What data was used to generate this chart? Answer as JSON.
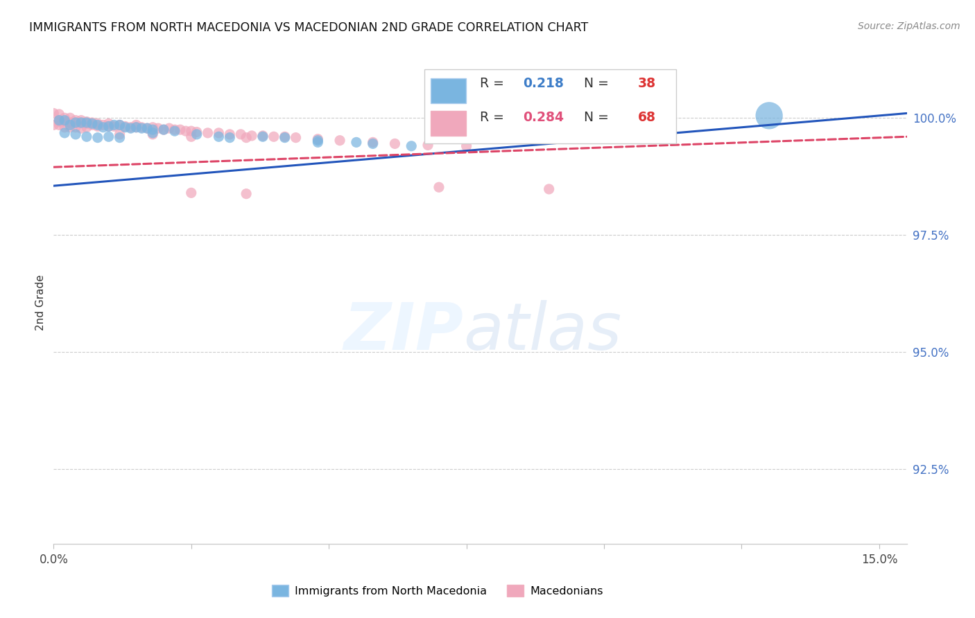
{
  "title": "IMMIGRANTS FROM NORTH MACEDONIA VS MACEDONIAN 2ND GRADE CORRELATION CHART",
  "source": "Source: ZipAtlas.com",
  "ylabel": "2nd Grade",
  "ytick_labels": [
    "100.0%",
    "97.5%",
    "95.0%",
    "92.5%"
  ],
  "ytick_values": [
    1.0,
    0.975,
    0.95,
    0.925
  ],
  "xtick_values": [
    0.0,
    0.025,
    0.05,
    0.075,
    0.1,
    0.125,
    0.15
  ],
  "xtick_labels": [
    "0.0%",
    "",
    "",
    "",
    "",
    "",
    "15.0%"
  ],
  "xmin": 0.0,
  "xmax": 0.155,
  "ymin": 0.909,
  "ymax": 1.012,
  "legend_blue_r": "0.218",
  "legend_blue_n": "38",
  "legend_pink_r": "0.284",
  "legend_pink_n": "68",
  "blue_color": "#7ab5e0",
  "pink_color": "#f0a8bc",
  "line_blue_color": "#2255bb",
  "line_pink_color": "#dd4466",
  "blue_line_x0": 0.0,
  "blue_line_x1": 0.155,
  "blue_line_y0": 0.9855,
  "blue_line_y1": 1.001,
  "pink_line_x0": 0.0,
  "pink_line_x1": 0.155,
  "pink_line_y0": 0.9895,
  "pink_line_y1": 0.996,
  "blue_scatter_x": [
    0.001,
    0.002,
    0.003,
    0.004,
    0.005,
    0.006,
    0.007,
    0.008,
    0.009,
    0.01,
    0.011,
    0.012,
    0.013,
    0.014,
    0.015,
    0.016,
    0.017,
    0.018,
    0.02,
    0.022,
    0.026,
    0.03,
    0.032,
    0.038,
    0.042,
    0.048,
    0.055,
    0.065,
    0.002,
    0.004,
    0.006,
    0.008,
    0.01,
    0.012,
    0.018,
    0.048,
    0.058,
    0.13
  ],
  "blue_scatter_y": [
    0.9995,
    0.9995,
    0.9985,
    0.999,
    0.999,
    0.999,
    0.9988,
    0.9985,
    0.998,
    0.9982,
    0.9985,
    0.9985,
    0.998,
    0.9978,
    0.998,
    0.9978,
    0.9978,
    0.9975,
    0.9975,
    0.9972,
    0.9965,
    0.996,
    0.9958,
    0.996,
    0.9958,
    0.9952,
    0.9948,
    0.994,
    0.9968,
    0.9965,
    0.996,
    0.9958,
    0.996,
    0.9958,
    0.9968,
    0.9948,
    0.9945,
    1.0005
  ],
  "blue_scatter_sizes": [
    120,
    120,
    120,
    120,
    120,
    120,
    120,
    120,
    120,
    120,
    120,
    120,
    120,
    120,
    120,
    120,
    120,
    120,
    120,
    120,
    120,
    120,
    120,
    120,
    120,
    120,
    120,
    120,
    120,
    120,
    120,
    120,
    120,
    120,
    120,
    120,
    120,
    800
  ],
  "pink_scatter_x": [
    0.0,
    0.001,
    0.001,
    0.001,
    0.002,
    0.002,
    0.003,
    0.003,
    0.004,
    0.004,
    0.005,
    0.005,
    0.006,
    0.006,
    0.007,
    0.007,
    0.008,
    0.008,
    0.009,
    0.01,
    0.01,
    0.011,
    0.012,
    0.013,
    0.014,
    0.015,
    0.015,
    0.016,
    0.017,
    0.018,
    0.019,
    0.02,
    0.021,
    0.022,
    0.023,
    0.024,
    0.025,
    0.026,
    0.028,
    0.03,
    0.032,
    0.034,
    0.036,
    0.038,
    0.04,
    0.042,
    0.044,
    0.048,
    0.052,
    0.058,
    0.062,
    0.068,
    0.075,
    0.0,
    0.001,
    0.002,
    0.003,
    0.004,
    0.005,
    0.006,
    0.012,
    0.018,
    0.025,
    0.035,
    0.07,
    0.09,
    0.025,
    0.035
  ],
  "pink_scatter_y": [
    1.001,
    1.0008,
    0.9995,
    0.9992,
    1.0,
    0.9992,
    1.0,
    0.999,
    0.9995,
    0.999,
    0.9995,
    0.999,
    0.9992,
    0.9988,
    0.999,
    0.9985,
    0.9988,
    0.9982,
    0.9985,
    0.9988,
    0.9982,
    0.9982,
    0.9985,
    0.9982,
    0.998,
    0.9985,
    0.998,
    0.998,
    0.9978,
    0.998,
    0.9978,
    0.9975,
    0.9978,
    0.9975,
    0.9975,
    0.9972,
    0.9972,
    0.997,
    0.9968,
    0.9968,
    0.9965,
    0.9965,
    0.9962,
    0.9962,
    0.996,
    0.996,
    0.9958,
    0.9955,
    0.9952,
    0.9948,
    0.9945,
    0.9942,
    0.994,
    0.9985,
    0.9985,
    0.998,
    0.998,
    0.998,
    0.9978,
    0.998,
    0.9965,
    0.9965,
    0.996,
    0.9958,
    0.9852,
    0.9848,
    0.984,
    0.9838
  ],
  "pink_scatter_sizes": [
    120,
    120,
    120,
    120,
    120,
    120,
    120,
    120,
    120,
    120,
    120,
    120,
    120,
    120,
    120,
    120,
    120,
    120,
    120,
    120,
    120,
    120,
    120,
    120,
    120,
    120,
    120,
    120,
    120,
    120,
    120,
    120,
    120,
    120,
    120,
    120,
    120,
    120,
    120,
    120,
    120,
    120,
    120,
    120,
    120,
    120,
    120,
    120,
    120,
    120,
    120,
    120,
    120,
    120,
    120,
    120,
    120,
    120,
    120,
    120,
    120,
    120,
    120,
    120,
    120,
    120,
    120,
    120
  ]
}
